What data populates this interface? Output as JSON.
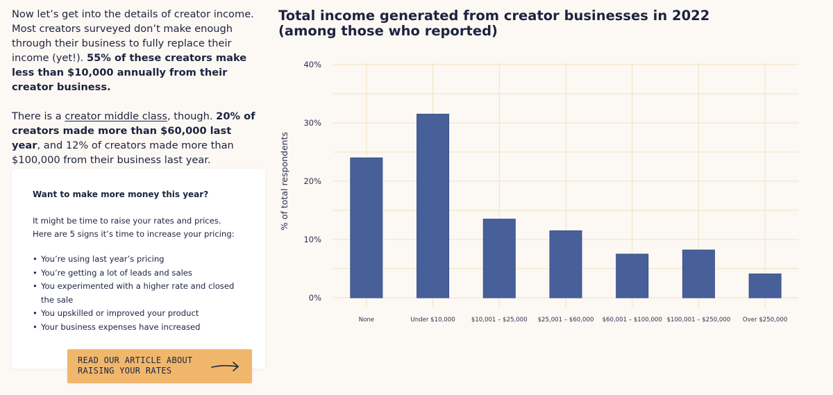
{
  "article": {
    "p1_plain": "Now let’s get into the details of creator income. Most creators surveyed don’t make enough through their business to fully replace their income (yet!). ",
    "p1_bold": "55% of these creators make less than $10,000 annually from their creator business.",
    "p2_pre": "There is a ",
    "p2_link": "creator middle class",
    "p2_mid": ", though. ",
    "p2_bold": "20% of creators made more than $60,000 last year",
    "p2_post": ", and 12% of creators made more than $100,000 from their business last year."
  },
  "card": {
    "title": "Want to make more money this year?",
    "body": "It might be time to raise your rates and prices. Here are 5 signs it’s time to increase your pricing:",
    "items": [
      "You’re using last year’s pricing",
      "You’re getting a lot of leads and sales",
      "You experimented with a higher rate and closed the sale",
      "You upskilled or improved your product",
      "Your business expenses have increased"
    ],
    "cta_label": "READ OUR ARTICLE ABOUT\nRAISING YOUR RATES",
    "cta_icon": "arrow-right-icon"
  },
  "colors": {
    "bar": "#48609a",
    "grid": "#f1e2bf",
    "background": "#fcf8f3",
    "cta": "#f0b76c",
    "text": "#1c2340"
  },
  "chart_data": {
    "type": "bar",
    "title": "Total income generated from creator businesses in 2022 (among those who reported)",
    "xlabel": "",
    "ylabel": "% of total respondents",
    "categories": [
      "None",
      "Under $10,000",
      "$10,001 – $25,000",
      "$25,001 – $60,000",
      "$60,001 – $100,000",
      "$100,001 – $250,000",
      "Over $250,000"
    ],
    "values": [
      24,
      31.5,
      13.5,
      11.5,
      7.5,
      8.2,
      4.1
    ],
    "ylim": [
      0,
      40
    ],
    "yticks": [
      0,
      10,
      20,
      30,
      40
    ],
    "ytick_labels": [
      "0%",
      "10%",
      "20%",
      "30%",
      "40%"
    ],
    "grid": true,
    "legend": "none"
  }
}
